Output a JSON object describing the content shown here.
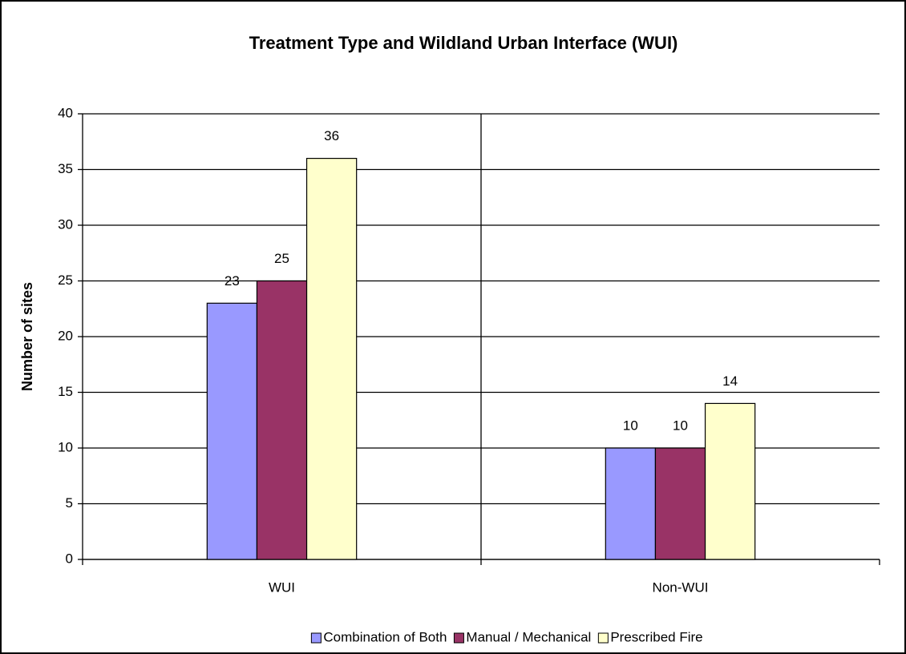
{
  "chart_data": {
    "type": "bar",
    "title": "Treatment Type and Wildland Urban Interface (WUI)",
    "y_label": "Number of sites",
    "categories": [
      "WUI",
      "Non-WUI"
    ],
    "series": [
      {
        "name": "Combination of Both",
        "color": "#9999ff",
        "values": [
          23,
          10
        ]
      },
      {
        "name": "Manual / Mechanical",
        "color": "#993366",
        "values": [
          25,
          10
        ]
      },
      {
        "name": "Prescribed Fire",
        "color": "#ffffcc",
        "values": [
          36,
          14
        ]
      }
    ],
    "ylim": [
      0,
      40
    ],
    "yticks": [
      0,
      5,
      10,
      15,
      20,
      25,
      30,
      35,
      40
    ],
    "grid": true,
    "legend": "bottom"
  }
}
